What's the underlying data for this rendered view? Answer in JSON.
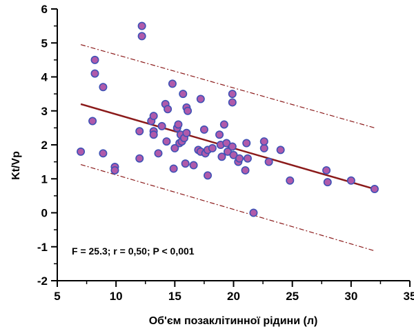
{
  "chart_data": {
    "type": "scatter",
    "title": "",
    "xlabel": "Об'єм позаклітинної рідини (л)",
    "ylabel": "Kt/Vp",
    "xlim": [
      5,
      35
    ],
    "ylim": [
      -2,
      6
    ],
    "x_ticks": [
      "5",
      "10",
      "15",
      "20",
      "25",
      "30",
      "35"
    ],
    "y_ticks": [
      "-2",
      "-1",
      "0",
      "1",
      "2",
      "3",
      "4",
      "5",
      "6"
    ],
    "annotation": "F = 25.3; r = 0,50; P < 0,001",
    "grid": false,
    "colors": {
      "point_fill": "#b05aaa",
      "point_stroke": "#3f51b5",
      "line": "#8b1a1a"
    },
    "points": [
      {
        "x": 7.0,
        "y": 1.8
      },
      {
        "x": 8.0,
        "y": 2.7
      },
      {
        "x": 8.2,
        "y": 4.5
      },
      {
        "x": 8.2,
        "y": 4.1
      },
      {
        "x": 8.9,
        "y": 3.7
      },
      {
        "x": 8.9,
        "y": 1.75
      },
      {
        "x": 9.9,
        "y": 1.35
      },
      {
        "x": 9.9,
        "y": 1.25
      },
      {
        "x": 12.0,
        "y": 1.6
      },
      {
        "x": 12.0,
        "y": 2.4
      },
      {
        "x": 12.2,
        "y": 5.5
      },
      {
        "x": 12.2,
        "y": 5.2
      },
      {
        "x": 13.0,
        "y": 2.7
      },
      {
        "x": 13.2,
        "y": 2.85
      },
      {
        "x": 13.2,
        "y": 2.4
      },
      {
        "x": 13.2,
        "y": 2.3
      },
      {
        "x": 13.6,
        "y": 1.75
      },
      {
        "x": 13.9,
        "y": 2.55
      },
      {
        "x": 14.2,
        "y": 3.2
      },
      {
        "x": 14.3,
        "y": 2.1
      },
      {
        "x": 14.4,
        "y": 3.05
      },
      {
        "x": 14.8,
        "y": 3.8
      },
      {
        "x": 14.9,
        "y": 1.3
      },
      {
        "x": 15.0,
        "y": 1.9
      },
      {
        "x": 15.2,
        "y": 2.5
      },
      {
        "x": 15.3,
        "y": 2.6
      },
      {
        "x": 15.4,
        "y": 2.05
      },
      {
        "x": 15.5,
        "y": 2.3
      },
      {
        "x": 15.6,
        "y": 2.1
      },
      {
        "x": 15.7,
        "y": 3.5
      },
      {
        "x": 15.8,
        "y": 2.2
      },
      {
        "x": 15.9,
        "y": 1.45
      },
      {
        "x": 16.0,
        "y": 2.35
      },
      {
        "x": 16.0,
        "y": 3.1
      },
      {
        "x": 16.1,
        "y": 3.0
      },
      {
        "x": 16.6,
        "y": 1.4
      },
      {
        "x": 17.0,
        "y": 1.85
      },
      {
        "x": 17.2,
        "y": 3.35
      },
      {
        "x": 17.2,
        "y": 1.8
      },
      {
        "x": 17.5,
        "y": 2.45
      },
      {
        "x": 17.6,
        "y": 1.75
      },
      {
        "x": 17.8,
        "y": 1.1
      },
      {
        "x": 17.8,
        "y": 1.85
      },
      {
        "x": 18.2,
        "y": 1.9
      },
      {
        "x": 18.8,
        "y": 2.3
      },
      {
        "x": 18.9,
        "y": 2.0
      },
      {
        "x": 19.0,
        "y": 1.65
      },
      {
        "x": 19.2,
        "y": 2.6
      },
      {
        "x": 19.4,
        "y": 2.05
      },
      {
        "x": 19.5,
        "y": 1.8
      },
      {
        "x": 19.9,
        "y": 3.5
      },
      {
        "x": 19.9,
        "y": 3.25
      },
      {
        "x": 19.9,
        "y": 1.95
      },
      {
        "x": 20.0,
        "y": 1.7
      },
      {
        "x": 20.4,
        "y": 1.5
      },
      {
        "x": 20.5,
        "y": 1.6
      },
      {
        "x": 21.0,
        "y": 1.25
      },
      {
        "x": 21.1,
        "y": 2.05
      },
      {
        "x": 21.2,
        "y": 1.6
      },
      {
        "x": 21.7,
        "y": 0.0
      },
      {
        "x": 22.6,
        "y": 1.9
      },
      {
        "x": 22.6,
        "y": 2.1
      },
      {
        "x": 23.0,
        "y": 1.5
      },
      {
        "x": 24.0,
        "y": 1.85
      },
      {
        "x": 24.8,
        "y": 0.95
      },
      {
        "x": 27.9,
        "y": 1.25
      },
      {
        "x": 28.0,
        "y": 0.9
      },
      {
        "x": 30.0,
        "y": 0.95
      },
      {
        "x": 32.0,
        "y": 0.7
      }
    ],
    "regression_line": {
      "x": [
        7,
        32
      ],
      "y": [
        3.2,
        0.7
      ]
    },
    "confidence_upper": {
      "x": [
        7,
        32
      ],
      "y": [
        4.95,
        2.5
      ]
    },
    "confidence_lower": {
      "x": [
        7,
        32
      ],
      "y": [
        1.42,
        -1.12
      ]
    }
  }
}
